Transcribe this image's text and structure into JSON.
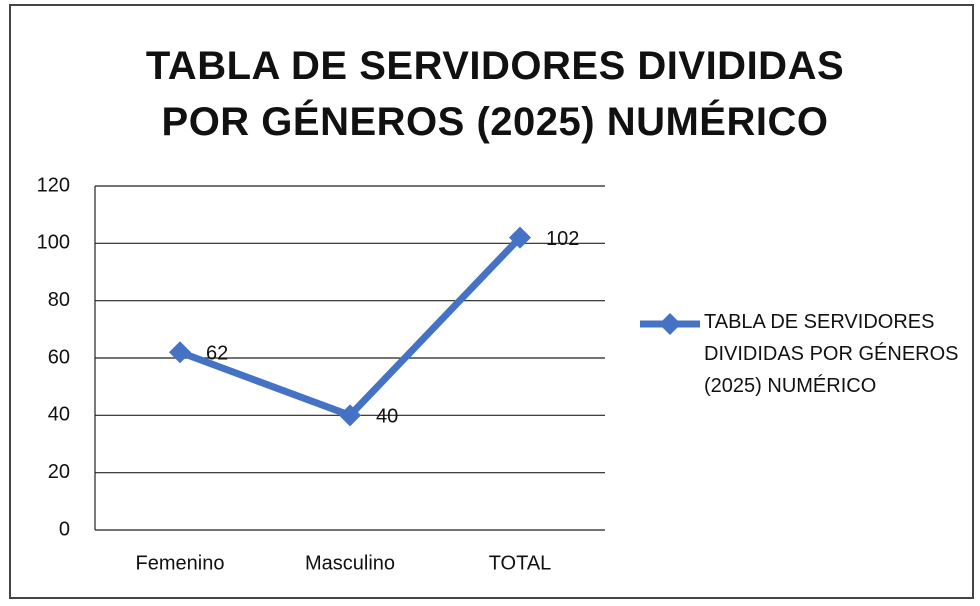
{
  "chart_data": {
    "type": "line",
    "title": "TABLA DE SERVIDORES DIVIDIDAS POR GÉNEROS (2025) NUMÉRICO",
    "categories": [
      "Femenino",
      "Masculino",
      "TOTAL"
    ],
    "series": [
      {
        "name": "TABLA DE SERVIDORES DIVIDIDAS POR GÉNEROS (2025) NUMÉRICO",
        "color": "#4472c4",
        "values": [
          62,
          40,
          102
        ]
      }
    ],
    "ylim": [
      0,
      120
    ],
    "yticks": [
      0,
      20,
      40,
      60,
      80,
      100,
      120
    ],
    "grid": true,
    "legend": "right",
    "data_labels": true
  }
}
